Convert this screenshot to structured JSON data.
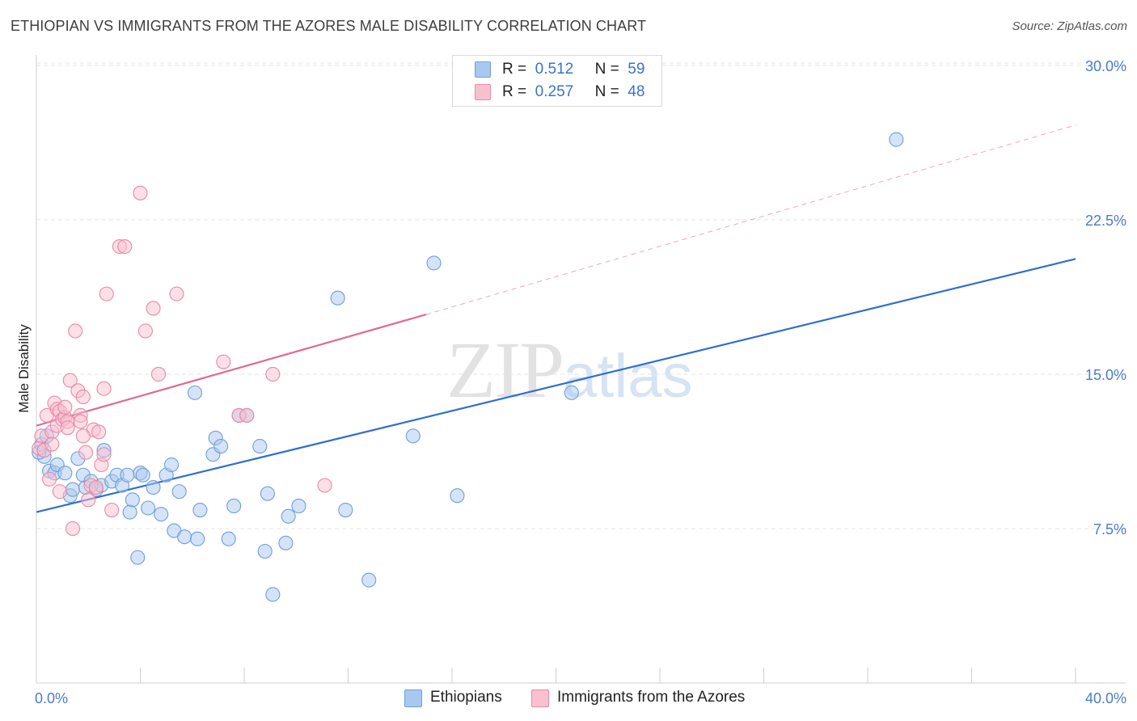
{
  "header": {
    "title": "ETHIOPIAN VS IMMIGRANTS FROM THE AZORES MALE DISABILITY CORRELATION CHART",
    "source": "Source: ZipAtlas.com"
  },
  "watermark": {
    "zip": "ZIP",
    "atlas": "atlas"
  },
  "legend": {
    "r_label": "R =",
    "n_label": "N =",
    "rows": [
      {
        "r": "0.512",
        "n": "59",
        "color": "#a9c8f0",
        "border": "#6f9fd8"
      },
      {
        "r": "0.257",
        "n": "48",
        "color": "#f9c0d0",
        "border": "#e68aa8"
      }
    ]
  },
  "chart_data": {
    "type": "scatter",
    "title": "ETHIOPIAN VS IMMIGRANTS FROM THE AZORES MALE DISABILITY CORRELATION CHART",
    "xlabel": "",
    "ylabel": "Male Disability",
    "xlim": [
      0,
      40
    ],
    "ylim": [
      0,
      31.5
    ],
    "x_tick_labels": [
      "0.0%",
      "40.0%"
    ],
    "y_ticks": [
      7.5,
      15.0,
      22.5,
      30.0
    ],
    "y_tick_labels": [
      "7.5%",
      "15.0%",
      "22.5%",
      "30.0%"
    ],
    "grid": true,
    "series": [
      {
        "name": "Ethiopians",
        "color": "#6f9fd8",
        "fill": "#a9c8f0",
        "line_color": "#2f6fce",
        "trend": {
          "x0": 0,
          "y0": 8.3,
          "x1": 40,
          "y1": 20.6
        },
        "points": [
          [
            0.2,
            11.6
          ],
          [
            0.3,
            11.0
          ],
          [
            0.4,
            12.0
          ],
          [
            0.5,
            10.3
          ],
          [
            0.7,
            10.2
          ],
          [
            0.8,
            10.6
          ],
          [
            1.1,
            10.2
          ],
          [
            1.3,
            9.1
          ],
          [
            1.4,
            9.4
          ],
          [
            1.6,
            10.9
          ],
          [
            1.8,
            10.1
          ],
          [
            1.9,
            9.5
          ],
          [
            2.1,
            9.8
          ],
          [
            2.3,
            9.4
          ],
          [
            2.5,
            9.6
          ],
          [
            2.6,
            11.3
          ],
          [
            2.9,
            9.8
          ],
          [
            3.1,
            10.1
          ],
          [
            3.3,
            9.6
          ],
          [
            3.5,
            10.1
          ],
          [
            3.6,
            8.3
          ],
          [
            3.7,
            8.9
          ],
          [
            3.9,
            6.1
          ],
          [
            4.0,
            10.2
          ],
          [
            4.1,
            10.1
          ],
          [
            4.3,
            8.5
          ],
          [
            4.5,
            9.5
          ],
          [
            4.8,
            8.2
          ],
          [
            5.0,
            10.1
          ],
          [
            5.2,
            10.6
          ],
          [
            5.3,
            7.4
          ],
          [
            5.5,
            9.3
          ],
          [
            5.7,
            7.1
          ],
          [
            6.1,
            14.1
          ],
          [
            6.2,
            7.0
          ],
          [
            6.3,
            8.4
          ],
          [
            6.8,
            11.1
          ],
          [
            6.9,
            11.9
          ],
          [
            7.1,
            11.5
          ],
          [
            7.4,
            7.0
          ],
          [
            7.6,
            8.6
          ],
          [
            7.8,
            13.0
          ],
          [
            8.1,
            13.0
          ],
          [
            8.6,
            11.5
          ],
          [
            8.8,
            6.4
          ],
          [
            8.9,
            9.2
          ],
          [
            9.1,
            4.3
          ],
          [
            9.6,
            6.8
          ],
          [
            9.7,
            8.1
          ],
          [
            10.1,
            8.6
          ],
          [
            11.6,
            18.7
          ],
          [
            11.9,
            8.4
          ],
          [
            12.8,
            5.0
          ],
          [
            14.5,
            12.0
          ],
          [
            15.3,
            20.4
          ],
          [
            16.2,
            9.1
          ],
          [
            20.6,
            14.1
          ],
          [
            33.1,
            26.4
          ],
          [
            0.1,
            11.2
          ]
        ]
      },
      {
        "name": "Immigrants from the Azores",
        "color": "#e68aa8",
        "fill": "#f9c0d0",
        "line_color": "#e06a94",
        "trend": {
          "x0": 0,
          "y0": 12.5,
          "x1": 15.0,
          "y1": 17.9
        },
        "trend_ext": {
          "x0": 15.0,
          "y0": 17.9,
          "x1": 40,
          "y1": 27.1
        },
        "points": [
          [
            0.1,
            11.4
          ],
          [
            0.2,
            12.0
          ],
          [
            0.3,
            11.3
          ],
          [
            0.4,
            13.0
          ],
          [
            0.5,
            9.9
          ],
          [
            0.6,
            12.2
          ],
          [
            0.7,
            13.6
          ],
          [
            0.8,
            13.3
          ],
          [
            0.8,
            12.5
          ],
          [
            0.9,
            13.2
          ],
          [
            1.0,
            12.8
          ],
          [
            1.1,
            12.9
          ],
          [
            1.1,
            13.4
          ],
          [
            1.2,
            12.7
          ],
          [
            1.3,
            14.7
          ],
          [
            1.4,
            7.5
          ],
          [
            1.5,
            17.1
          ],
          [
            1.6,
            14.2
          ],
          [
            1.7,
            13.0
          ],
          [
            1.7,
            12.7
          ],
          [
            1.8,
            13.9
          ],
          [
            1.9,
            11.2
          ],
          [
            2.0,
            8.9
          ],
          [
            2.1,
            9.6
          ],
          [
            2.2,
            12.3
          ],
          [
            2.3,
            9.5
          ],
          [
            2.4,
            12.2
          ],
          [
            2.5,
            10.6
          ],
          [
            2.6,
            11.1
          ],
          [
            2.6,
            14.3
          ],
          [
            2.7,
            18.9
          ],
          [
            2.9,
            8.4
          ],
          [
            3.2,
            21.2
          ],
          [
            3.4,
            21.2
          ],
          [
            4.0,
            23.8
          ],
          [
            4.2,
            17.1
          ],
          [
            4.5,
            18.2
          ],
          [
            4.7,
            15.0
          ],
          [
            5.4,
            18.9
          ],
          [
            7.2,
            15.6
          ],
          [
            7.8,
            13.0
          ],
          [
            8.1,
            13.0
          ],
          [
            9.1,
            15.0
          ],
          [
            11.1,
            9.6
          ],
          [
            0.9,
            9.3
          ],
          [
            1.8,
            12.0
          ],
          [
            0.6,
            11.6
          ],
          [
            1.2,
            12.4
          ]
        ]
      }
    ]
  },
  "bottom_legend": [
    {
      "label": "Ethiopians"
    },
    {
      "label": "Immigrants from the Azores"
    }
  ]
}
